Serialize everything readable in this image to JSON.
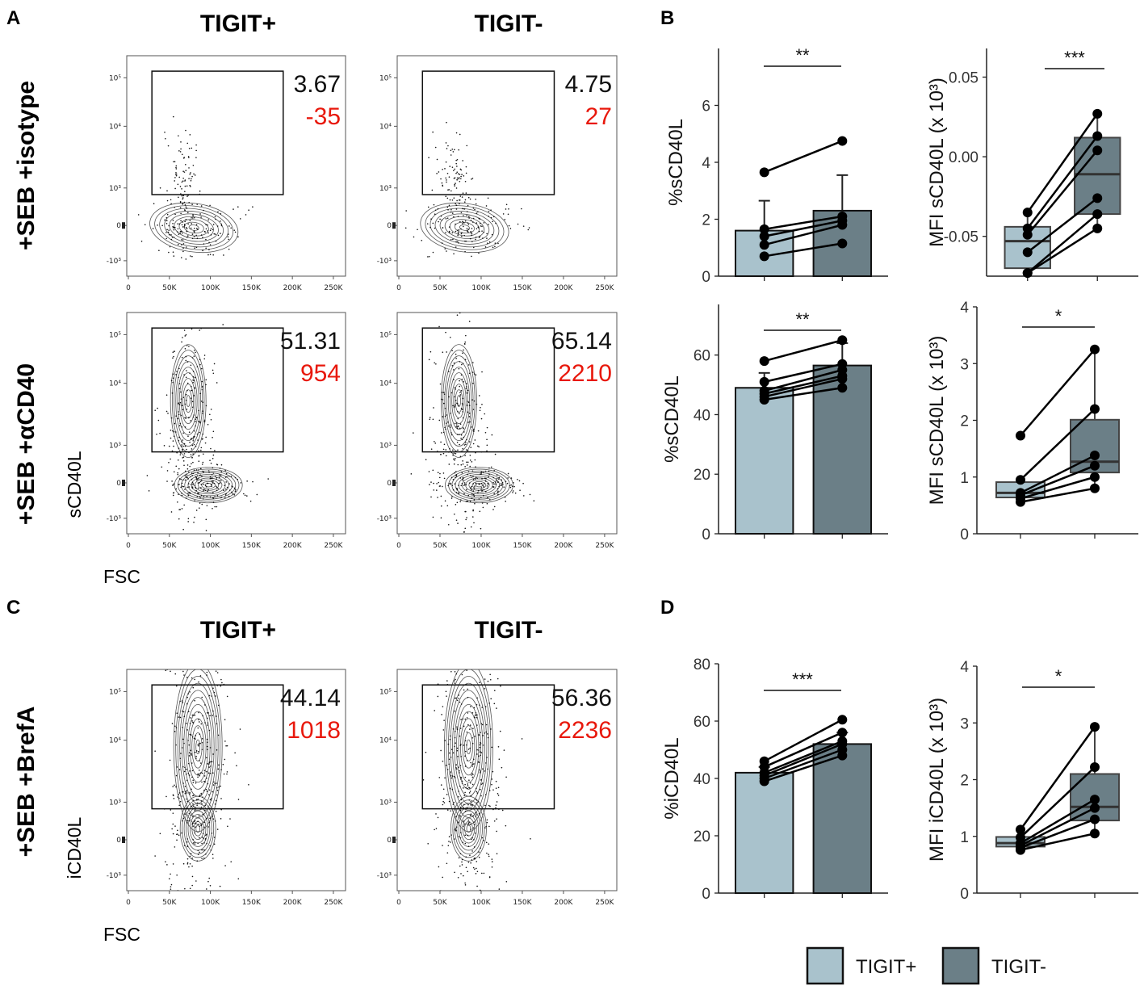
{
  "colors": {
    "tigit_pos": "#a9c2cc",
    "tigit_neg": "#6b7f87",
    "mfi_text": "#e8180c"
  },
  "panel_labels": {
    "a": "A",
    "b": "B",
    "c": "C",
    "d": "D"
  },
  "flow": {
    "col_titles": [
      "TIGIT+",
      "TIGIT-"
    ],
    "row_titles": {
      "r1": "+SEB +isotype",
      "r2": "+SEB +αCD40",
      "r3": "+SEB +BrefA"
    },
    "ylabel_s": "sCD40L",
    "ylabel_i": "iCD40L",
    "xlabel": "FSC",
    "x_ticks": [
      "0",
      "50K",
      "100K",
      "150K",
      "200K",
      "250K"
    ],
    "y_ticks": [
      "10⁵",
      "10⁴",
      "10³",
      "0",
      "-10³"
    ],
    "gates": {
      "r1_pos": {
        "pct": "3.67",
        "mfi": "-35"
      },
      "r1_neg": {
        "pct": "4.75",
        "mfi": "27"
      },
      "r2_pos": {
        "pct": "51.31",
        "mfi": "954"
      },
      "r2_neg": {
        "pct": "65.14",
        "mfi": "2210"
      },
      "r3_pos": {
        "pct": "44.14",
        "mfi": "1018"
      },
      "r3_neg": {
        "pct": "56.36",
        "mfi": "2236"
      }
    }
  },
  "legend": {
    "pos": "TIGIT+",
    "neg": "TIGIT-"
  },
  "chart_data": [
    {
      "id": "B1",
      "type": "bar",
      "ylabel": "%sCD40L",
      "ylim": [
        0,
        8
      ],
      "yticks": [
        0,
        2,
        4,
        6
      ],
      "categories": [
        "TIGIT+",
        "TIGIT-"
      ],
      "means": [
        1.6,
        2.3
      ],
      "error_upper": [
        2.65,
        3.55
      ],
      "pairs": [
        [
          3.65,
          4.75
        ],
        [
          1.65,
          2.1
        ],
        [
          1.4,
          1.95
        ],
        [
          1.1,
          1.8
        ],
        [
          0.7,
          1.15
        ]
      ],
      "significance": "**"
    },
    {
      "id": "B2",
      "type": "box",
      "ylabel": "MFI sCD40L (x 10³)",
      "ylim": [
        -0.075,
        0.068
      ],
      "yticks": [
        -0.05,
        0.0,
        0.05
      ],
      "ytick_labels": [
        "-0.05",
        "0.00",
        "0.05"
      ],
      "categories": [
        "TIGIT+",
        "TIGIT-"
      ],
      "boxes": [
        {
          "q1": -0.07,
          "median": -0.053,
          "q3": -0.044,
          "whisker_low": -0.073,
          "whisker_high": -0.035
        },
        {
          "q1": -0.036,
          "median": -0.011,
          "q3": 0.012,
          "whisker_low": -0.045,
          "whisker_high": 0.027
        }
      ],
      "pairs": [
        [
          -0.035,
          0.027
        ],
        [
          -0.045,
          0.013
        ],
        [
          -0.049,
          0.004
        ],
        [
          -0.06,
          -0.026
        ],
        [
          -0.073,
          -0.036
        ],
        [
          -0.073,
          -0.045
        ]
      ],
      "significance": "***"
    },
    {
      "id": "B3",
      "type": "bar",
      "ylabel": "%sCD40L",
      "ylim": [
        0,
        77
      ],
      "yticks": [
        0,
        20,
        40,
        60
      ],
      "categories": [
        "TIGIT+",
        "TIGIT-"
      ],
      "means": [
        49,
        56.5
      ],
      "error_upper": [
        54,
        64
      ],
      "pairs": [
        [
          58,
          65
        ],
        [
          51,
          57
        ],
        [
          48,
          55
        ],
        [
          47,
          53
        ],
        [
          46,
          52
        ],
        [
          45,
          49
        ]
      ],
      "significance": "**"
    },
    {
      "id": "B4",
      "type": "box",
      "ylabel": "MFI sCD40L (x 10³)",
      "ylim": [
        0,
        4
      ],
      "yticks": [
        0,
        1,
        2,
        3,
        4
      ],
      "categories": [
        "TIGIT+",
        "TIGIT-"
      ],
      "boxes": [
        {
          "q1": 0.64,
          "median": 0.72,
          "q3": 0.91,
          "whisker_low": 0.56,
          "whisker_high": 0.96
        },
        {
          "q1": 1.08,
          "median": 1.27,
          "q3": 2.01,
          "whisker_low": 0.8,
          "whisker_high": 3.25
        }
      ],
      "pairs": [
        [
          1.73,
          3.25
        ],
        [
          0.95,
          2.2
        ],
        [
          0.72,
          1.38
        ],
        [
          0.68,
          1.2
        ],
        [
          0.62,
          1.0
        ],
        [
          0.56,
          0.8
        ]
      ],
      "significance": "*"
    },
    {
      "id": "D1",
      "type": "bar",
      "ylabel": "%iCD40L",
      "ylim": [
        0,
        80
      ],
      "yticks": [
        0,
        20,
        40,
        60,
        80
      ],
      "categories": [
        "TIGIT+",
        "TIGIT-"
      ],
      "means": [
        42,
        52
      ],
      "error_upper": [
        44,
        56
      ],
      "pairs": [
        [
          46,
          60.5
        ],
        [
          44,
          56
        ],
        [
          42,
          53
        ],
        [
          41,
          52
        ],
        [
          40,
          50
        ],
        [
          39,
          48
        ]
      ],
      "significance": "***"
    },
    {
      "id": "D2",
      "type": "box",
      "ylabel": "MFI iCD40L (x 10³)",
      "ylim": [
        0,
        4
      ],
      "yticks": [
        0,
        1,
        2,
        3,
        4
      ],
      "categories": [
        "TIGIT+",
        "TIGIT-"
      ],
      "boxes": [
        {
          "q1": 0.82,
          "median": 0.88,
          "q3": 0.99,
          "whisker_low": 0.76,
          "whisker_high": 1.12
        },
        {
          "q1": 1.28,
          "median": 1.52,
          "q3": 2.1,
          "whisker_low": 1.05,
          "whisker_high": 2.93
        }
      ],
      "pairs": [
        [
          1.12,
          2.93
        ],
        [
          0.98,
          2.22
        ],
        [
          0.88,
          1.65
        ],
        [
          0.84,
          1.5
        ],
        [
          0.8,
          1.3
        ],
        [
          0.76,
          1.05
        ]
      ],
      "significance": "*"
    }
  ]
}
